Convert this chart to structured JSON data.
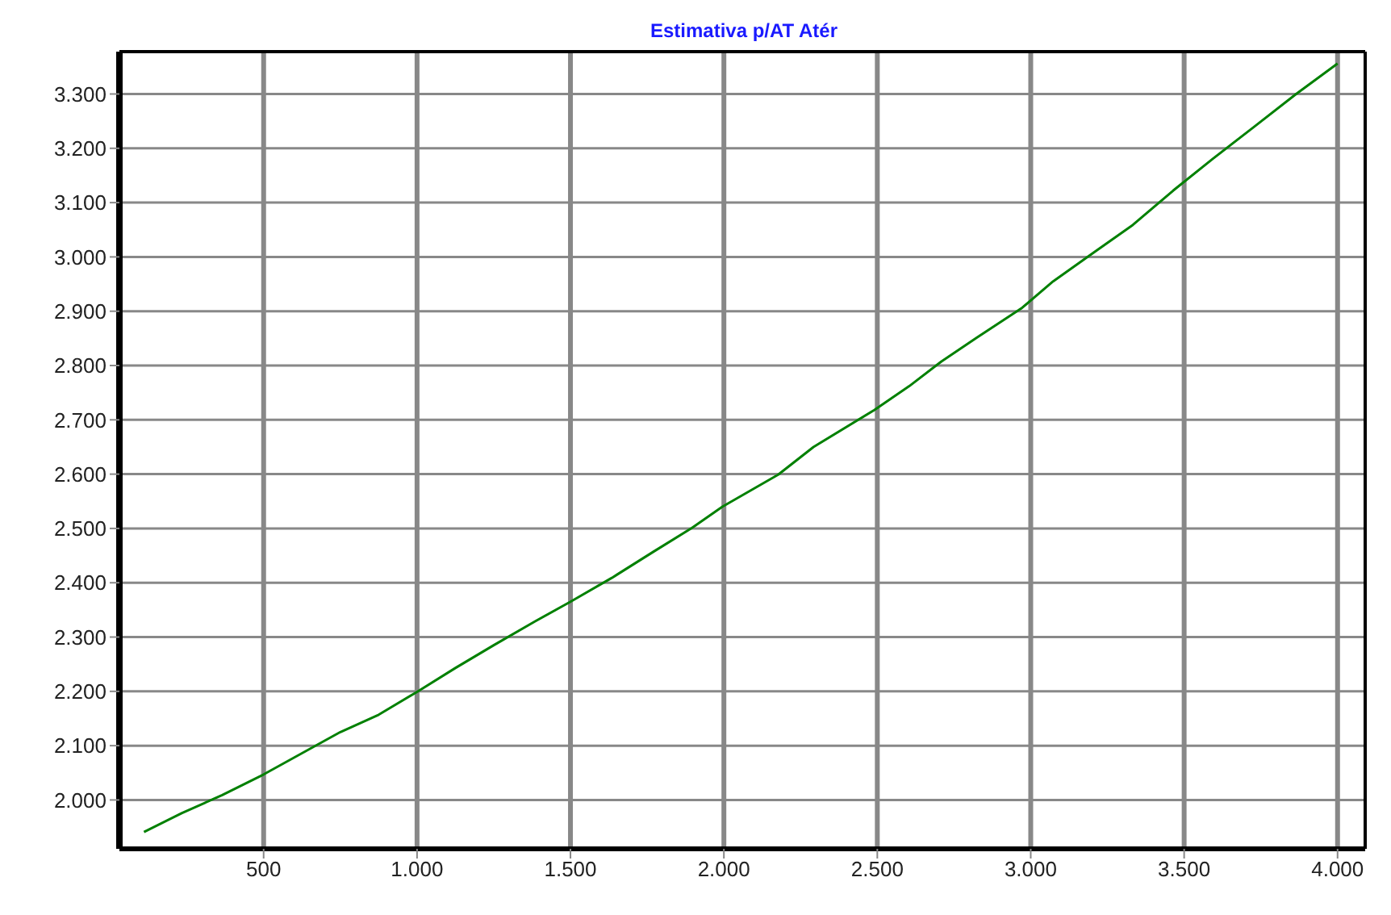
{
  "chart_data": {
    "type": "line",
    "title": "Estimativa p/AT Atér",
    "x": [
      110,
      234,
      365,
      500,
      625,
      750,
      875,
      1000,
      1125,
      1250,
      1385,
      1500,
      1635,
      1770,
      1896,
      1995,
      2177,
      2292,
      2490,
      2604,
      2708,
      2823,
      2969,
      3073,
      3208,
      3333,
      3464,
      3594,
      3729,
      3865,
      4000
    ],
    "series": [
      {
        "color": "#008000",
        "values": [
          1941,
          1976,
          2009,
          2047,
          2086,
          2125,
          2157,
          2199,
          2243,
          2285,
          2329,
          2365,
          2409,
          2457,
          2501,
          2540,
          2599,
          2650,
          2718,
          2762,
          2807,
          2851,
          2905,
          2955,
          3009,
          3059,
          3122,
          3181,
          3240,
          3300,
          3356
        ]
      }
    ],
    "xlim": [
      30,
      4090
    ],
    "xticks": [
      {
        "value": 500,
        "label": "500"
      },
      {
        "value": 1000,
        "label": "1.000"
      },
      {
        "value": 1500,
        "label": "1.500"
      },
      {
        "value": 2000,
        "label": "2.000"
      },
      {
        "value": 2500,
        "label": "2.500"
      },
      {
        "value": 3000,
        "label": "3.000"
      },
      {
        "value": 3500,
        "label": "3.500"
      },
      {
        "value": 4000,
        "label": "4.000"
      }
    ],
    "ylim": [
      1910,
      3378
    ],
    "yticks": [
      {
        "value": 2000,
        "label": "2.000"
      },
      {
        "value": 2100,
        "label": "2.100"
      },
      {
        "value": 2200,
        "label": "2.200"
      },
      {
        "value": 2300,
        "label": "2.300"
      },
      {
        "value": 2400,
        "label": "2.400"
      },
      {
        "value": 2500,
        "label": "2.500"
      },
      {
        "value": 2600,
        "label": "2.600"
      },
      {
        "value": 2700,
        "label": "2.700"
      },
      {
        "value": 2800,
        "label": "2.800"
      },
      {
        "value": 2900,
        "label": "2.900"
      },
      {
        "value": 3000,
        "label": "3.000"
      },
      {
        "value": 3100,
        "label": "3.100"
      },
      {
        "value": 3200,
        "label": "3.200"
      },
      {
        "value": 3300,
        "label": "3.300"
      }
    ],
    "grid": true,
    "marker": "none",
    "line_style": "solid"
  }
}
